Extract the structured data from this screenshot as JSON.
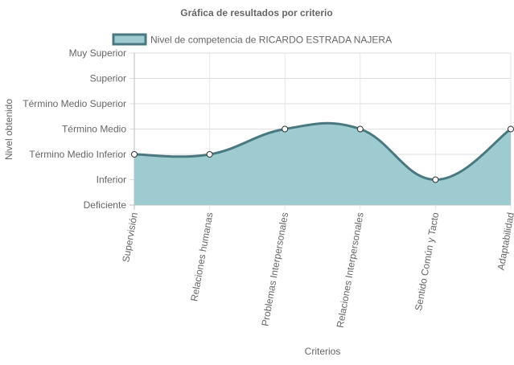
{
  "chart_data": {
    "type": "area",
    "title": "Gráfica de resultados por criterio",
    "xlabel": "Criterios",
    "ylabel": "Nivel obtenido",
    "legend_position": "top",
    "grid": true,
    "y_levels": [
      "Deficiente",
      "Inferior",
      "Término Medio Inferior",
      "Término Medio",
      "Término Medio Superior",
      "Superior",
      "Muy Superior"
    ],
    "ylim": [
      0,
      6
    ],
    "categories": [
      "Supervisión",
      "Relaciones humanas",
      "Problemas Interpersonales",
      "Relaciones Interpersonales",
      "Sentido Común y Tacto",
      "Adaptabilidad"
    ],
    "series": [
      {
        "name": "Nivel de competencia de RICARDO ESTRADA NAJERA",
        "values": [
          2,
          2,
          3,
          3,
          1,
          3
        ],
        "fill_color": "#9ecbcf",
        "line_color": "#4a7880"
      }
    ]
  }
}
